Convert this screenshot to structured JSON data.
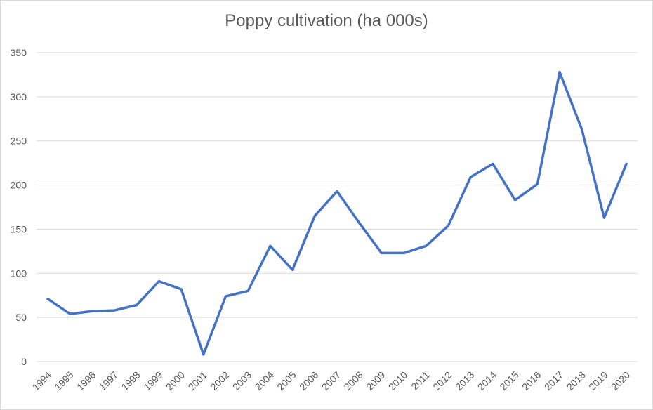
{
  "chart_data": {
    "type": "line",
    "title": "Poppy cultivation (ha 000s)",
    "xlabel": "",
    "ylabel": "",
    "ylim": [
      0,
      350
    ],
    "yticks": [
      0,
      50,
      100,
      150,
      200,
      250,
      300,
      350
    ],
    "grid": true,
    "categories": [
      "1994",
      "1995",
      "1996",
      "1997",
      "1998",
      "1999",
      "2000",
      "2001",
      "2002",
      "2003",
      "2004",
      "2005",
      "2006",
      "2007",
      "2008",
      "2009",
      "2010",
      "2011",
      "2012",
      "2013",
      "2014",
      "2015",
      "2016",
      "2017",
      "2018",
      "2019",
      "2020"
    ],
    "series": [
      {
        "values": [
          71,
          54,
          57,
          58,
          64,
          91,
          82,
          8,
          74,
          80,
          131,
          104,
          165,
          193,
          157,
          123,
          123,
          131,
          154,
          209,
          224,
          183,
          201,
          328,
          263,
          163,
          224
        ],
        "color": "#4472c4"
      }
    ]
  }
}
